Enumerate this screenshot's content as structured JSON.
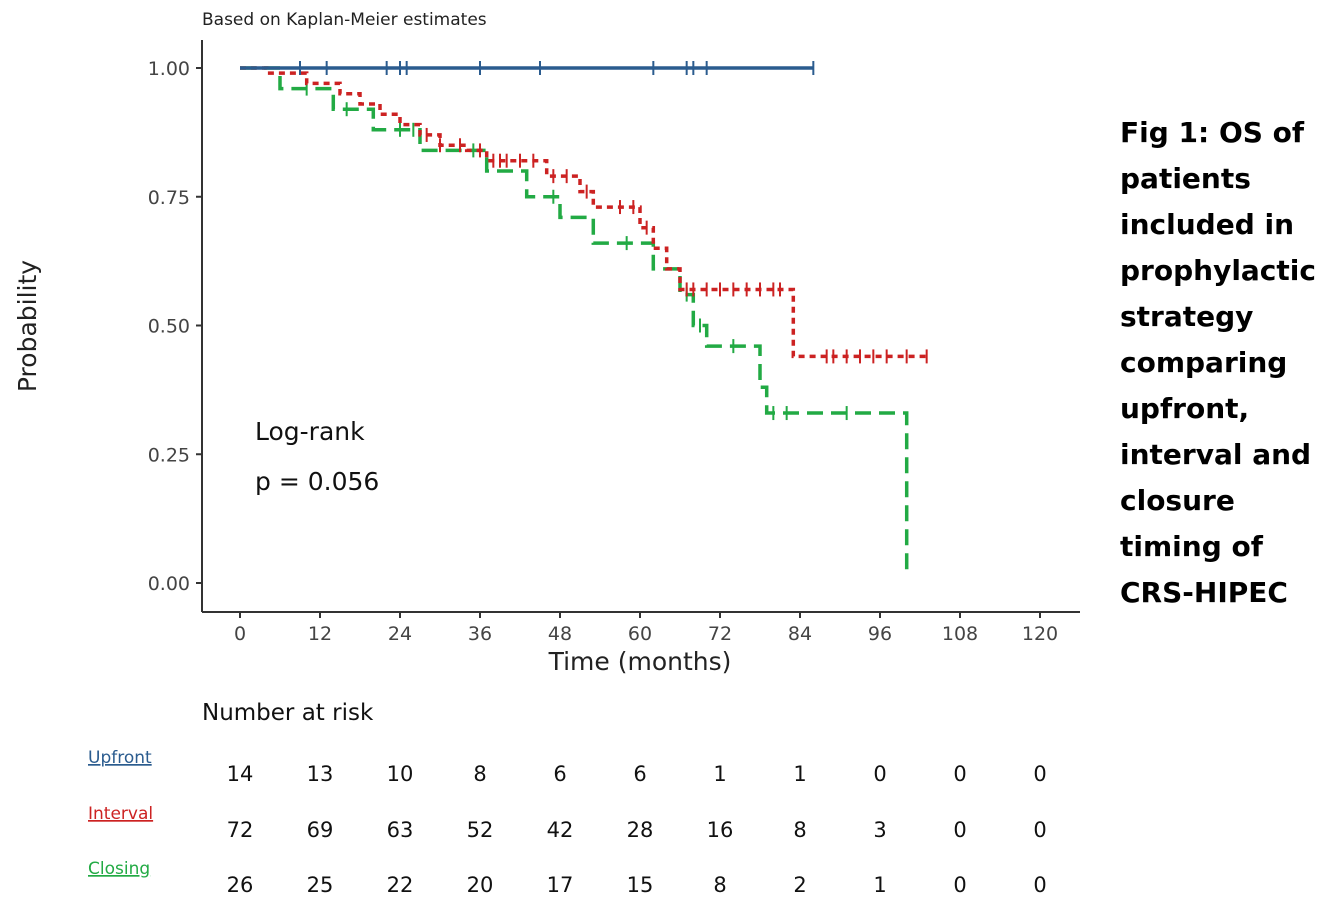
{
  "chart_data": {
    "type": "line",
    "subtitle": "Based on Kaplan-Meier estimates",
    "xlabel": "Time (months)",
    "ylabel": "Probability",
    "xlim": [
      0,
      120
    ],
    "ylim": [
      0,
      1
    ],
    "x_ticks": [
      0,
      12,
      24,
      36,
      48,
      60,
      72,
      84,
      96,
      108,
      120
    ],
    "x_tick_labels": [
      "0",
      "12",
      "24",
      "36",
      "48",
      "60",
      "72",
      "84",
      "96",
      "108",
      "120"
    ],
    "y_ticks": [
      0,
      0.25,
      0.5,
      0.75,
      1
    ],
    "y_tick_labels": [
      "0.00",
      "0.25",
      "0.50",
      "0.75",
      "1.00"
    ],
    "annotation": {
      "line1": "Log-rank",
      "line2": "p = 0.056"
    },
    "series": [
      {
        "name": "Upfront",
        "color": "#2b5c8f",
        "dash": "solid",
        "steps": [
          [
            0,
            1.0
          ],
          [
            86,
            1.0
          ]
        ],
        "censor_times": [
          9,
          13,
          22,
          24,
          25,
          36,
          45,
          62,
          67,
          68,
          70,
          86
        ]
      },
      {
        "name": "Interval",
        "color": "#cc2222",
        "dash": "dotted",
        "steps": [
          [
            0,
            1.0
          ],
          [
            4,
            1.0
          ],
          [
            4,
            0.99
          ],
          [
            10,
            0.99
          ],
          [
            10,
            0.97
          ],
          [
            15,
            0.97
          ],
          [
            15,
            0.95
          ],
          [
            18,
            0.95
          ],
          [
            18,
            0.93
          ],
          [
            21,
            0.93
          ],
          [
            21,
            0.91
          ],
          [
            24,
            0.91
          ],
          [
            24,
            0.89
          ],
          [
            27,
            0.89
          ],
          [
            27,
            0.87
          ],
          [
            30,
            0.87
          ],
          [
            30,
            0.85
          ],
          [
            34,
            0.85
          ],
          [
            34,
            0.84
          ],
          [
            37,
            0.84
          ],
          [
            37,
            0.82
          ],
          [
            46,
            0.82
          ],
          [
            46,
            0.79
          ],
          [
            51,
            0.79
          ],
          [
            51,
            0.76
          ],
          [
            53,
            0.76
          ],
          [
            53,
            0.73
          ],
          [
            60,
            0.73
          ],
          [
            60,
            0.69
          ],
          [
            62,
            0.69
          ],
          [
            62,
            0.65
          ],
          [
            64,
            0.65
          ],
          [
            64,
            0.61
          ],
          [
            66,
            0.61
          ],
          [
            66,
            0.57
          ],
          [
            83,
            0.57
          ],
          [
            83,
            0.44
          ],
          [
            103,
            0.44
          ]
        ],
        "censor_times": [
          28,
          30,
          33,
          36,
          38,
          39,
          40,
          42,
          44,
          47,
          49,
          52,
          57,
          59,
          61,
          67,
          68,
          70,
          72,
          74,
          76,
          78,
          80,
          81,
          88,
          89,
          91,
          93,
          95,
          97,
          100,
          103
        ]
      },
      {
        "name": "Closing",
        "color": "#22aa44",
        "dash": "dashed",
        "steps": [
          [
            0,
            1.0
          ],
          [
            6,
            1.0
          ],
          [
            6,
            0.96
          ],
          [
            14,
            0.96
          ],
          [
            14,
            0.92
          ],
          [
            20,
            0.92
          ],
          [
            20,
            0.88
          ],
          [
            27,
            0.88
          ],
          [
            27,
            0.84
          ],
          [
            37,
            0.84
          ],
          [
            37,
            0.8
          ],
          [
            43,
            0.8
          ],
          [
            43,
            0.75
          ],
          [
            48,
            0.75
          ],
          [
            48,
            0.71
          ],
          [
            53,
            0.71
          ],
          [
            53,
            0.66
          ],
          [
            62,
            0.66
          ],
          [
            62,
            0.61
          ],
          [
            66,
            0.61
          ],
          [
            66,
            0.56
          ],
          [
            68,
            0.56
          ],
          [
            68,
            0.5
          ],
          [
            70,
            0.5
          ],
          [
            70,
            0.46
          ],
          [
            78,
            0.46
          ],
          [
            78,
            0.38
          ],
          [
            79,
            0.38
          ],
          [
            79,
            0.33
          ],
          [
            100,
            0.33
          ],
          [
            100,
            0.02
          ]
        ],
        "censor_times": [
          10,
          16,
          24,
          26,
          35,
          47,
          58,
          67,
          69,
          74,
          80,
          82,
          91
        ]
      }
    ]
  },
  "risk_table": {
    "title": "Number at risk",
    "rows": [
      {
        "label": "Upfront",
        "color": "#2b5c8f",
        "values": [
          "14",
          "13",
          "10",
          "8",
          "6",
          "6",
          "1",
          "1",
          "0",
          "0",
          "0"
        ]
      },
      {
        "label": "Interval",
        "color": "#cc2222",
        "values": [
          "72",
          "69",
          "63",
          "52",
          "42",
          "28",
          "16",
          "8",
          "3",
          "0",
          "0"
        ]
      },
      {
        "label": "Closing",
        "color": "#22aa44",
        "values": [
          "26",
          "25",
          "22",
          "20",
          "17",
          "15",
          "8",
          "2",
          "1",
          "0",
          "0"
        ]
      }
    ]
  },
  "caption": {
    "lines": [
      "Fig 1: OS of",
      "patients",
      "included in",
      "prophylactic",
      "strategy",
      "comparing",
      "upfront,",
      "interval and",
      "closure",
      "timing of",
      "CRS-HIPEC"
    ]
  }
}
